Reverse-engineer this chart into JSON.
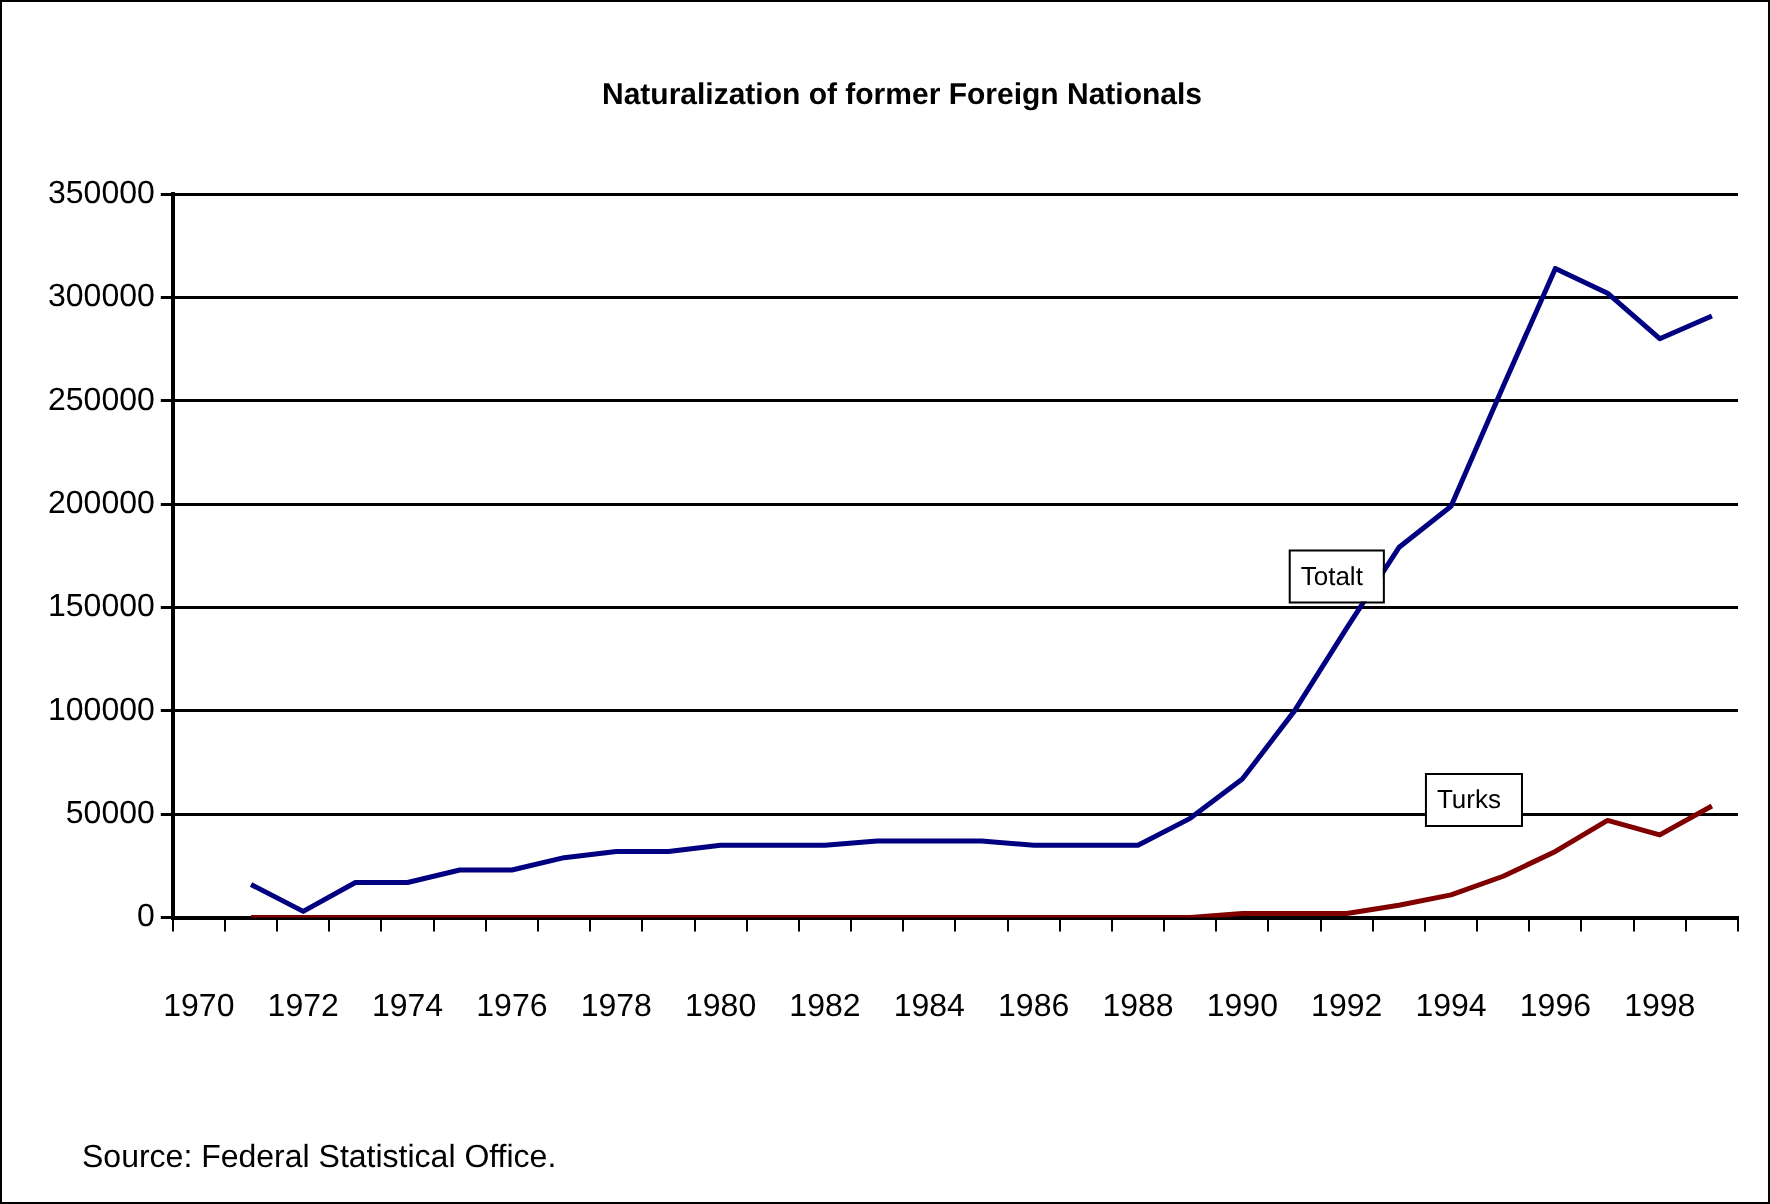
{
  "chart_data": {
    "type": "line",
    "title": "Naturalization of former Foreign Nationals",
    "categories": [
      "1970",
      null,
      "1972",
      null,
      "1974",
      null,
      "1976",
      null,
      "1978",
      null,
      "1980",
      null,
      "1982",
      null,
      "1984",
      null,
      "1986",
      null,
      "1988",
      null,
      "1990",
      null,
      "1992",
      null,
      "1994",
      null,
      "1996",
      null,
      "1998",
      null
    ],
    "series": [
      {
        "name": "Totalt",
        "color": "#000080",
        "values": [
          null,
          16000,
          3000,
          17000,
          17000,
          23000,
          23000,
          29000,
          32000,
          32000,
          35000,
          35000,
          35000,
          37000,
          37000,
          37000,
          35000,
          35000,
          35000,
          48000,
          67000,
          100000,
          140000,
          179000,
          199000,
          257000,
          314000,
          302000,
          280000,
          291000
        ]
      },
      {
        "name": "Turks",
        "color": "#800000",
        "values": [
          null,
          0,
          0,
          0,
          0,
          0,
          0,
          0,
          0,
          0,
          0,
          0,
          0,
          0,
          0,
          0,
          0,
          0,
          0,
          0,
          2000,
          2000,
          2000,
          6000,
          11000,
          20000,
          32000,
          47000,
          40000,
          54000
        ]
      }
    ],
    "ylim": [
      0,
      350000
    ],
    "yticks": [
      0,
      50000,
      100000,
      150000,
      200000,
      250000,
      300000,
      350000
    ],
    "grid": "y",
    "legend": false,
    "marker": "none",
    "line_style": "solid",
    "annotations": [
      "Source: Federal Statistical Office."
    ]
  }
}
